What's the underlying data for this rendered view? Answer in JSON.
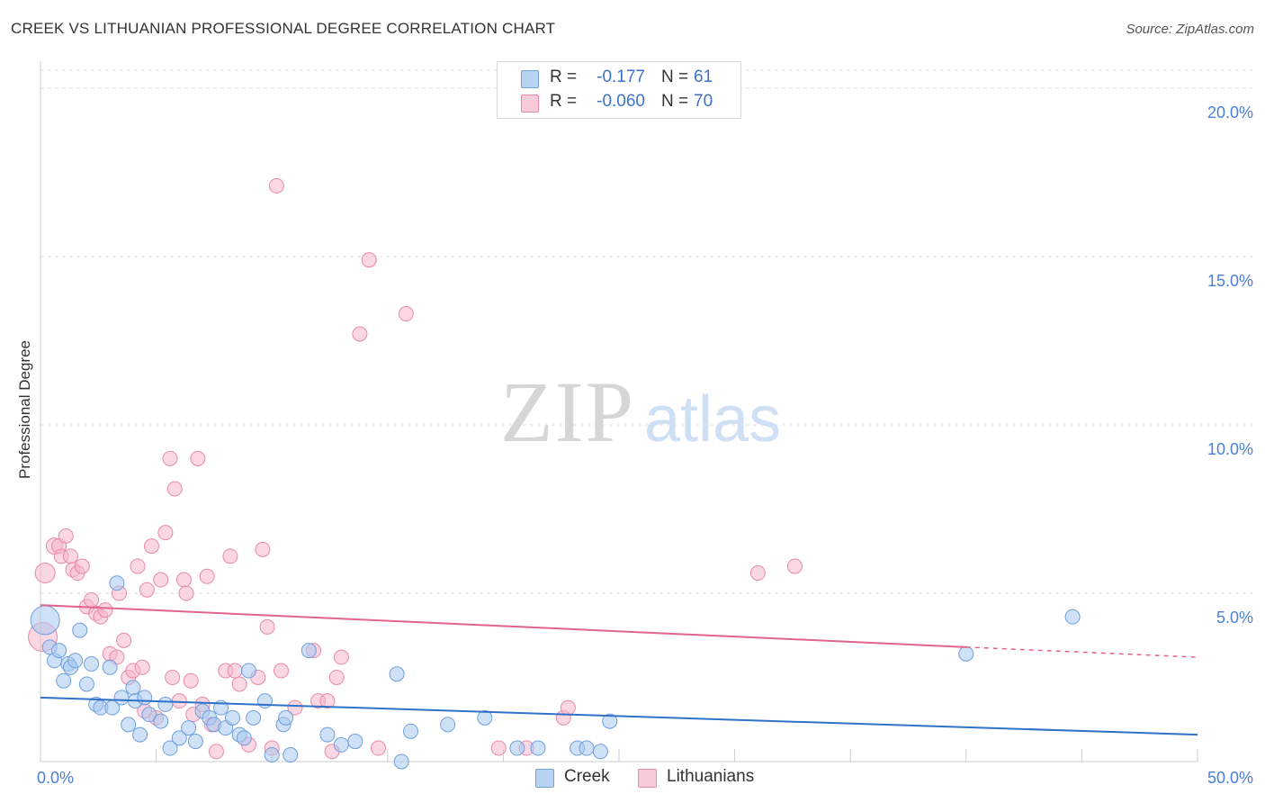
{
  "title": "CREEK VS LITHUANIAN PROFESSIONAL DEGREE CORRELATION CHART",
  "source": "Source: ZipAtlas.com",
  "watermark": {
    "zip": "ZIP",
    "atlas": "atlas"
  },
  "legend": {
    "rows": [
      {
        "r_label": "R =",
        "r_value": "-0.177",
        "n_label": "N =",
        "n_value": "61"
      },
      {
        "r_label": "R =",
        "r_value": "-0.060",
        "n_label": "N =",
        "n_value": "70"
      }
    ]
  },
  "bottom_legend": {
    "creek": "Creek",
    "lithuanians": "Lithuanians"
  },
  "colors": {
    "creek_fill": "#a8c8f0",
    "creek_stroke": "#6f9fdc",
    "creek_line": "#2f72c8",
    "lith_fill": "#f6b6cb",
    "lith_stroke": "#e88aa8",
    "lith_line": "#e0648c",
    "grid": "#dddddd",
    "tick": "#4a7fd4"
  },
  "chart_data": {
    "type": "scatter",
    "title": "CREEK VS LITHUANIAN PROFESSIONAL DEGREE CORRELATION CHART",
    "xlabel": "",
    "ylabel": "Professional Degree",
    "xlim": [
      0,
      50
    ],
    "ylim": [
      0,
      20.8
    ],
    "x_tick_labels": [
      "0.0%",
      "50.0%"
    ],
    "y_ticks": [
      5,
      10,
      15,
      20
    ],
    "y_tick_labels": [
      "5.0%",
      "10.0%",
      "15.0%",
      "20.0%"
    ],
    "series": [
      {
        "name": "Creek",
        "r": -0.177,
        "n": 61,
        "trend": {
          "x0": 0,
          "y0": 1.9,
          "x1": 50,
          "y1": 0.8
        },
        "points": [
          [
            0.2,
            4.2,
            16
          ],
          [
            0.4,
            3.4,
            8
          ],
          [
            0.6,
            3.0,
            8
          ],
          [
            0.8,
            3.3,
            8
          ],
          [
            1.0,
            2.4,
            8
          ],
          [
            1.2,
            2.9,
            8
          ],
          [
            1.3,
            2.8,
            8
          ],
          [
            1.5,
            3.0,
            8
          ],
          [
            1.7,
            3.9,
            8
          ],
          [
            2.0,
            2.3,
            8
          ],
          [
            2.2,
            2.9,
            8
          ],
          [
            2.4,
            1.7,
            8
          ],
          [
            2.6,
            1.6,
            8
          ],
          [
            3.0,
            2.8,
            8
          ],
          [
            3.1,
            1.6,
            8
          ],
          [
            3.3,
            5.3,
            8
          ],
          [
            3.5,
            1.9,
            8
          ],
          [
            3.8,
            1.1,
            8
          ],
          [
            4.0,
            2.2,
            8
          ],
          [
            4.1,
            1.8,
            8
          ],
          [
            4.3,
            0.8,
            8
          ],
          [
            4.5,
            1.9,
            8
          ],
          [
            4.7,
            1.4,
            8
          ],
          [
            5.2,
            1.2,
            8
          ],
          [
            5.4,
            1.7,
            8
          ],
          [
            5.6,
            0.4,
            8
          ],
          [
            6.0,
            0.7,
            8
          ],
          [
            6.4,
            1.0,
            8
          ],
          [
            6.7,
            0.6,
            8
          ],
          [
            7.0,
            1.5,
            8
          ],
          [
            7.3,
            1.3,
            8
          ],
          [
            7.5,
            1.1,
            8
          ],
          [
            7.8,
            1.6,
            8
          ],
          [
            8.0,
            1.0,
            8
          ],
          [
            8.3,
            1.3,
            8
          ],
          [
            8.6,
            0.8,
            8
          ],
          [
            8.8,
            0.7,
            8
          ],
          [
            9.0,
            2.7,
            8
          ],
          [
            9.2,
            1.3,
            8
          ],
          [
            9.7,
            1.8,
            8
          ],
          [
            10.0,
            0.2,
            8
          ],
          [
            10.5,
            1.1,
            8
          ],
          [
            10.6,
            1.3,
            8
          ],
          [
            10.8,
            0.2,
            8
          ],
          [
            11.6,
            3.3,
            8
          ],
          [
            12.4,
            0.8,
            8
          ],
          [
            13.0,
            0.5,
            8
          ],
          [
            13.6,
            0.6,
            8
          ],
          [
            15.4,
            2.6,
            8
          ],
          [
            15.6,
            0.0,
            8
          ],
          [
            16.0,
            0.9,
            8
          ],
          [
            17.6,
            1.1,
            8
          ],
          [
            19.2,
            1.3,
            8
          ],
          [
            20.6,
            0.4,
            8
          ],
          [
            21.5,
            0.4,
            8
          ],
          [
            23.2,
            0.4,
            8
          ],
          [
            23.6,
            0.4,
            8
          ],
          [
            24.2,
            0.3,
            8
          ],
          [
            24.6,
            1.2,
            8
          ],
          [
            40.0,
            3.2,
            8
          ],
          [
            44.6,
            4.3,
            8
          ]
        ]
      },
      {
        "name": "Lithuanians",
        "r": -0.06,
        "n": 70,
        "trend": {
          "x0": 0,
          "y0": 4.65,
          "x1": 40,
          "y1": 3.4,
          "dash_x1": 50,
          "dash_y1": 3.1
        },
        "points": [
          [
            0.1,
            3.7,
            16
          ],
          [
            0.2,
            5.6,
            11
          ],
          [
            0.6,
            6.4,
            9
          ],
          [
            0.8,
            6.4,
            8
          ],
          [
            0.9,
            6.1,
            8
          ],
          [
            1.1,
            6.7,
            8
          ],
          [
            1.3,
            6.1,
            8
          ],
          [
            1.4,
            5.7,
            8
          ],
          [
            1.6,
            5.6,
            8
          ],
          [
            1.8,
            5.8,
            8
          ],
          [
            2.0,
            4.6,
            8
          ],
          [
            2.2,
            4.8,
            8
          ],
          [
            2.4,
            4.4,
            8
          ],
          [
            2.6,
            4.3,
            8
          ],
          [
            2.8,
            4.5,
            8
          ],
          [
            3.0,
            3.2,
            8
          ],
          [
            3.3,
            3.1,
            8
          ],
          [
            3.4,
            5.0,
            8
          ],
          [
            3.6,
            3.6,
            8
          ],
          [
            3.8,
            2.5,
            8
          ],
          [
            4.0,
            2.7,
            8
          ],
          [
            4.2,
            5.8,
            8
          ],
          [
            4.4,
            2.8,
            8
          ],
          [
            4.5,
            1.5,
            8
          ],
          [
            4.6,
            5.1,
            8
          ],
          [
            4.8,
            6.4,
            8
          ],
          [
            5.0,
            1.3,
            8
          ],
          [
            5.2,
            5.4,
            8
          ],
          [
            5.4,
            6.8,
            8
          ],
          [
            5.6,
            9.0,
            8
          ],
          [
            5.7,
            2.5,
            8
          ],
          [
            5.8,
            8.1,
            8
          ],
          [
            6.0,
            1.8,
            8
          ],
          [
            6.2,
            5.4,
            8
          ],
          [
            6.3,
            5.0,
            8
          ],
          [
            6.5,
            2.4,
            8
          ],
          [
            6.6,
            1.4,
            8
          ],
          [
            6.8,
            9.0,
            8
          ],
          [
            7.0,
            1.7,
            8
          ],
          [
            7.2,
            5.5,
            8
          ],
          [
            7.4,
            1.1,
            8
          ],
          [
            7.6,
            0.3,
            8
          ],
          [
            8.0,
            2.7,
            8
          ],
          [
            8.2,
            6.1,
            8
          ],
          [
            8.4,
            2.7,
            8
          ],
          [
            8.6,
            2.3,
            8
          ],
          [
            9.0,
            0.5,
            8
          ],
          [
            9.4,
            2.5,
            8
          ],
          [
            9.6,
            6.3,
            8
          ],
          [
            9.8,
            4.0,
            8
          ],
          [
            10.0,
            0.4,
            8
          ],
          [
            10.4,
            2.7,
            8
          ],
          [
            10.2,
            17.1,
            8
          ],
          [
            11.0,
            1.6,
            8
          ],
          [
            11.8,
            3.3,
            8
          ],
          [
            12.0,
            1.8,
            8
          ],
          [
            12.4,
            1.8,
            8
          ],
          [
            12.6,
            0.3,
            8
          ],
          [
            12.8,
            2.5,
            8
          ],
          [
            13.0,
            3.1,
            8
          ],
          [
            13.8,
            12.7,
            8
          ],
          [
            14.2,
            14.9,
            8
          ],
          [
            14.6,
            0.4,
            8
          ],
          [
            15.8,
            13.3,
            8
          ],
          [
            19.8,
            0.4,
            8
          ],
          [
            21.0,
            0.4,
            8
          ],
          [
            22.6,
            1.3,
            8
          ],
          [
            22.8,
            1.6,
            8
          ],
          [
            31.0,
            5.6,
            8
          ],
          [
            32.6,
            5.8,
            8
          ]
        ]
      }
    ]
  }
}
